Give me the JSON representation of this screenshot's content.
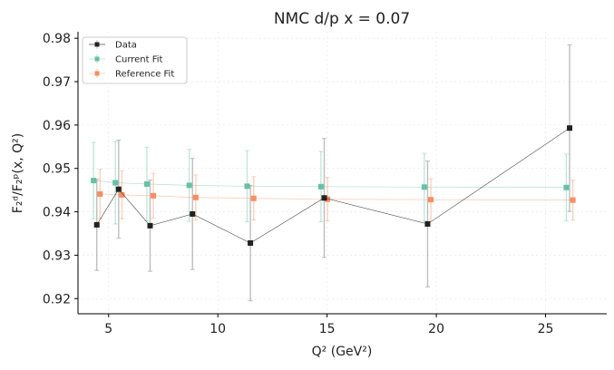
{
  "chart_data": {
    "type": "scatter",
    "title": "NMC d/p x = 0.07",
    "xlabel": "Q² (GeV²)",
    "ylabel": "F₂ᵈ/F₂ᵖ(x, Q²)",
    "xlim": [
      3.6,
      27.8
    ],
    "ylim": [
      0.9165,
      0.9815
    ],
    "xticks": [
      5,
      10,
      15,
      20,
      25
    ],
    "yticks": [
      0.92,
      0.93,
      0.94,
      0.95,
      0.96,
      0.97,
      0.98
    ],
    "xtick_labels": [
      "5",
      "10",
      "15",
      "20",
      "25"
    ],
    "ytick_labels": [
      "0.92",
      "0.93",
      "0.94",
      "0.95",
      "0.96",
      "0.97",
      "0.98"
    ],
    "grid": true,
    "legend_position": "top-left",
    "series": [
      {
        "name": "Data",
        "color": "#222222",
        "x": [
          4.46,
          5.46,
          6.9,
          8.84,
          11.49,
          14.87,
          19.6,
          26.1
        ],
        "y": [
          0.937,
          0.9452,
          0.9368,
          0.9395,
          0.9328,
          0.9432,
          0.9372,
          0.9593
        ],
        "yerr": [
          0.0105,
          0.0113,
          0.0105,
          0.0128,
          0.0133,
          0.0137,
          0.0145,
          0.0192
        ]
      },
      {
        "name": "Current Fit",
        "color": "#66c2a5",
        "x": [
          4.46,
          5.46,
          6.9,
          8.84,
          11.49,
          14.87,
          19.6,
          26.1
        ],
        "y": [
          0.9472,
          0.9467,
          0.9464,
          0.9461,
          0.9459,
          0.9458,
          0.9457,
          0.9456
        ],
        "yerr": [
          0.0088,
          0.0095,
          0.0085,
          0.0083,
          0.0082,
          0.0081,
          0.0078,
          0.0077
        ]
      },
      {
        "name": "Reference Fit",
        "color": "#fc8d62",
        "x": [
          4.46,
          5.46,
          6.9,
          8.84,
          11.49,
          14.87,
          19.6,
          26.1
        ],
        "y": [
          0.9441,
          0.9439,
          0.9437,
          0.9433,
          0.9431,
          0.9429,
          0.9428,
          0.9427
        ],
        "yerr": [
          0.0057,
          0.0055,
          0.0052,
          0.0052,
          0.005,
          0.005,
          0.0048,
          0.0046
        ]
      }
    ]
  }
}
